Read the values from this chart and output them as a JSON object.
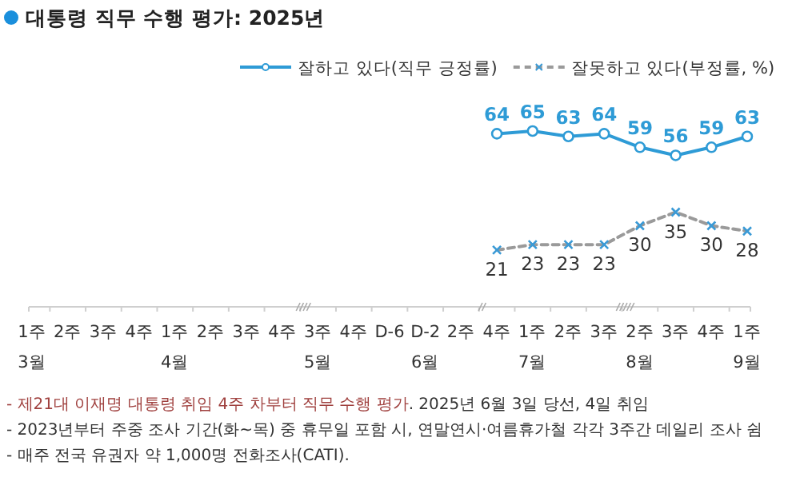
{
  "chart_data": {
    "type": "line",
    "title": "대통령 직무 수행 평가: 2025년",
    "categories": [
      "1주\n3월",
      "2주",
      "3주",
      "4주",
      "1주\n4월",
      "2주",
      "3주",
      "4주",
      "3주\n5월",
      "4주",
      "D-6",
      "D-2\n6월",
      "2주",
      "4주",
      "1주\n7월",
      "2주",
      "3주",
      "2주\n8월",
      "3주",
      "4주",
      "1주\n9월"
    ],
    "series": [
      {
        "name": "잘하고 있다(직무 긍정률)",
        "color": "#2e9bd6",
        "marker": "circle",
        "line_style": "solid",
        "values": [
          null,
          null,
          null,
          null,
          null,
          null,
          null,
          null,
          null,
          null,
          null,
          null,
          null,
          64,
          65,
          63,
          64,
          59,
          56,
          59,
          63
        ]
      },
      {
        "name": "잘못하고 있다(부정률, %)",
        "color": "#9a9a9a",
        "marker": "cross",
        "line_style": "dashed",
        "values": [
          null,
          null,
          null,
          null,
          null,
          null,
          null,
          null,
          null,
          null,
          null,
          null,
          null,
          21,
          23,
          23,
          23,
          30,
          35,
          30,
          28
        ]
      }
    ],
    "data_labels": true,
    "legend": "top right",
    "annotations": [
      "- 제21대 이재명 대통령 취임 4주 차부터 직무 수행 평가",
      ". 2025년 6월 3일 당선, 4일 취임",
      "- 2023년부터 주중 조사 기간(화~목) 중 휴무일 포함 시, 연말연시·여름휴가철 각각 3주간 데일리 조사 쉼",
      "- 매주 전국 유권자 약 1,000명 전화조사(CATI)."
    ]
  }
}
